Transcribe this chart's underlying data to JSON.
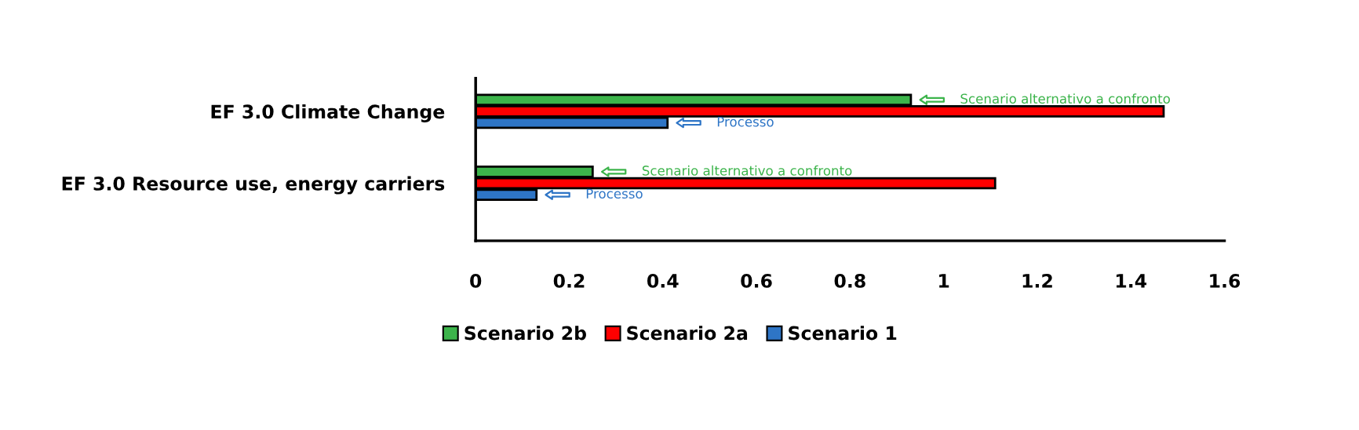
{
  "chart_data": {
    "type": "bar",
    "orientation": "horizontal",
    "categories": [
      "EF 3.0 Climate Change",
      "EF 3.0 Resource use, energy carriers"
    ],
    "series": [
      {
        "name": "Scenario 2b",
        "color": "#3cb44b",
        "values": [
          0.93,
          0.25
        ]
      },
      {
        "name": "Scenario 2a",
        "color": "#ff0000",
        "values": [
          1.47,
          1.11
        ]
      },
      {
        "name": "Scenario 1",
        "color": "#2e75c6",
        "values": [
          0.41,
          0.13
        ]
      }
    ],
    "xlim": [
      0,
      1.6
    ],
    "xticks": [
      0,
      0.2,
      0.4,
      0.6,
      0.8,
      1,
      1.2,
      1.4,
      1.6
    ],
    "grid": false,
    "legend": "bottom",
    "annotations": [
      "Scenario alternativo a confronto",
      "Processo",
      "Scenario alternativo a confronto",
      "Processo"
    ]
  }
}
